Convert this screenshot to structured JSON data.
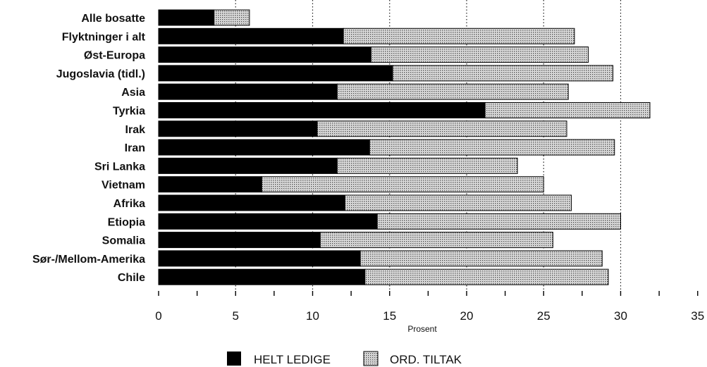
{
  "chart_data": {
    "type": "bar",
    "orientation": "horizontal",
    "stacked": true,
    "categories": [
      "Alle bosatte",
      "Flyktninger i alt",
      "Øst-Europa",
      "Jugoslavia (tidl.)",
      "Asia",
      "Tyrkia",
      "Irak",
      "Iran",
      "Sri Lanka",
      "Vietnam",
      "Afrika",
      "Etiopia",
      "Somalia",
      "Sør-/Mellom-Amerika",
      "Chile"
    ],
    "series": [
      {
        "name": "HELT LEDIGE",
        "color": "#000000",
        "pattern": "solid",
        "values": [
          3.6,
          12.0,
          13.8,
          15.2,
          11.6,
          21.2,
          10.3,
          13.7,
          11.6,
          6.7,
          12.1,
          14.2,
          10.5,
          13.1,
          13.4
        ]
      },
      {
        "name": "ORD. TILTAK",
        "color": "#b8b8b8",
        "pattern": "stippled",
        "values": [
          2.3,
          15.0,
          14.1,
          14.3,
          15.0,
          10.7,
          16.2,
          15.9,
          11.7,
          18.3,
          14.7,
          15.8,
          15.1,
          15.7,
          15.8
        ]
      }
    ],
    "xlabel": "Prosent",
    "ylabel": "",
    "xlim": [
      0,
      35
    ],
    "xticks": [
      "0",
      "5",
      "10",
      "15",
      "20",
      "25",
      "30",
      "35"
    ],
    "grid": "dotted vertical at 5, 10, 15, 20, 25, 30",
    "legend": "bottom-center"
  }
}
